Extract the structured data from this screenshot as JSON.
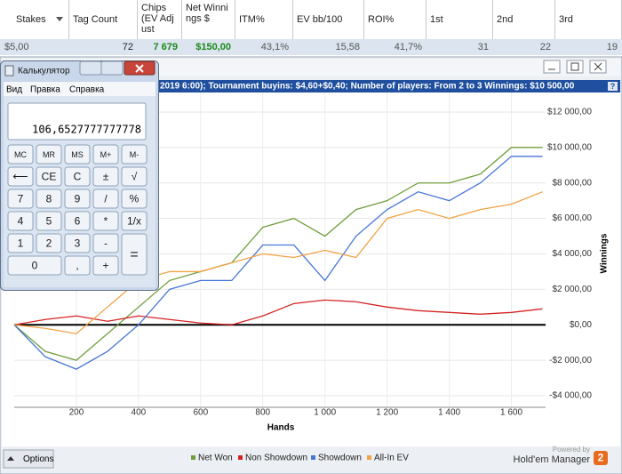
{
  "table": {
    "headers": [
      "Stakes",
      "Tag Count",
      "Chips (EV Adjust",
      "Net Winnings $",
      "ITM%",
      "EV bb/100",
      "ROI%",
      "1st",
      "2nd",
      "3rd"
    ],
    "row": [
      "$5,00",
      "72",
      "7 679",
      "$150,00",
      "43,1%",
      "15,58",
      "41,7%",
      "31",
      "22",
      "19"
    ]
  },
  "chart_window": {
    "title": "2019 6:00); Tournament buyins: $4,60+$0,40; Number of players: From 2 to 3 Winnings: $10 500,00",
    "help": "?",
    "options": "Options",
    "powered_by": "Powered by",
    "brand": "Hold'em Manager",
    "brand_mark": "2"
  },
  "chart_data": {
    "type": "line",
    "x_label": "Hands",
    "y_label": "Winnings",
    "x": [
      0,
      100,
      200,
      300,
      400,
      500,
      600,
      700,
      800,
      900,
      1000,
      1100,
      1200,
      1300,
      1400,
      1500,
      1600,
      1700
    ],
    "series": [
      {
        "name": "Net Won",
        "color": "#6f9e3c",
        "values": [
          0,
          -1500,
          -2000,
          -500,
          1000,
          2500,
          3000,
          3500,
          5500,
          6000,
          5000,
          6500,
          7000,
          8000,
          8000,
          8500,
          10000,
          10000
        ]
      },
      {
        "name": "Non Showdown",
        "color": "#d42424",
        "values": [
          0,
          300,
          500,
          200,
          500,
          300,
          100,
          0,
          500,
          1200,
          1400,
          1300,
          1000,
          800,
          700,
          600,
          700,
          900
        ]
      },
      {
        "name": "Showdown",
        "color": "#4876d6",
        "values": [
          0,
          -1800,
          -2500,
          -1500,
          0,
          2000,
          2500,
          2500,
          4500,
          4500,
          2500,
          5000,
          6500,
          7500,
          7000,
          8000,
          9500,
          9500
        ]
      },
      {
        "name": "All-In EV",
        "color": "#f2a244",
        "values": [
          0,
          -200,
          -500,
          1000,
          2500,
          3000,
          3000,
          3500,
          4000,
          3800,
          4200,
          3800,
          6000,
          6500,
          6000,
          6500,
          6800,
          7500
        ]
      }
    ],
    "xlim": [
      0,
      1710
    ],
    "ylim": [
      -4650,
      13100
    ],
    "xticks": [
      200,
      400,
      600,
      800,
      {
        "value": 1000,
        "label": "1 000"
      },
      {
        "value": 1200,
        "label": "1 200"
      },
      {
        "value": 1400,
        "label": "1 400"
      },
      {
        "value": 1600,
        "label": "1 600"
      }
    ],
    "yticks": [
      {
        "value": 12000,
        "label": "$12 000,00"
      },
      {
        "value": 10000,
        "label": "$10 000,00"
      },
      {
        "value": 8000,
        "label": "$8 000,00"
      },
      {
        "value": 6000,
        "label": "$6 000,00"
      },
      {
        "value": 4000,
        "label": "$4 000,00"
      },
      {
        "value": 2000,
        "label": "$2 000,00"
      },
      {
        "value": 0,
        "label": "$0,00"
      },
      {
        "value": -2000,
        "label": "-$2 000,00"
      },
      {
        "value": -4000,
        "label": "-$4 000,00"
      }
    ],
    "grid": true,
    "legend": "bottom"
  },
  "calculator": {
    "title": "Калькулятор",
    "menu": [
      "Вид",
      "Правка",
      "Справка"
    ],
    "display": "106,6527777777778",
    "buttons": [
      "MC",
      "MR",
      "MS",
      "M+",
      "M-",
      "⟵",
      "CE",
      "C",
      "±",
      "√",
      "7",
      "8",
      "9",
      "/",
      "%",
      "4",
      "5",
      "6",
      "*",
      "1/x",
      "1",
      "2",
      "3",
      "-",
      "=",
      "0",
      ",",
      "+"
    ]
  }
}
